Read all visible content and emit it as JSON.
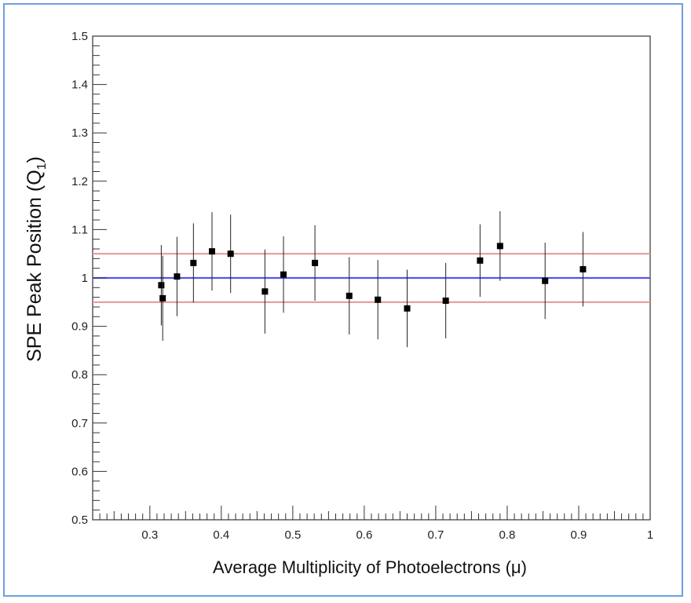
{
  "chart_data": {
    "type": "scatter",
    "xlabel": "Average Multiplicity of Photoelectrons (μ)",
    "ylabel_main": "SPE Peak Position (Q",
    "ylabel_sub": "1",
    "ylabel_close": ")",
    "xlim": [
      0.22,
      1.0
    ],
    "ylim": [
      0.5,
      1.5
    ],
    "x_tick_labels": [
      "0.3",
      "0.4",
      "0.5",
      "0.6",
      "0.7",
      "0.8",
      "0.9",
      "1"
    ],
    "y_tick_labels": [
      "0.5",
      "0.6",
      "0.7",
      "0.8",
      "0.9",
      "1",
      "1.1",
      "1.2",
      "1.3",
      "1.4",
      "1.5"
    ],
    "reference_lines": [
      {
        "y": 1.0,
        "color": "#5555ee"
      },
      {
        "y": 1.05,
        "color": "#e69a9a"
      },
      {
        "y": 0.95,
        "color": "#e69a9a"
      }
    ],
    "points": [
      {
        "x": 0.316,
        "y": 0.985,
        "err": 0.083
      },
      {
        "x": 0.318,
        "y": 0.958,
        "err": 0.088
      },
      {
        "x": 0.338,
        "y": 1.003,
        "err": 0.082
      },
      {
        "x": 0.361,
        "y": 1.031,
        "err": 0.082
      },
      {
        "x": 0.387,
        "y": 1.055,
        "err": 0.081
      },
      {
        "x": 0.413,
        "y": 1.05,
        "err": 0.081
      },
      {
        "x": 0.461,
        "y": 0.972,
        "err": 0.087
      },
      {
        "x": 0.487,
        "y": 1.007,
        "err": 0.079
      },
      {
        "x": 0.531,
        "y": 1.031,
        "err": 0.078
      },
      {
        "x": 0.579,
        "y": 0.963,
        "err": 0.08
      },
      {
        "x": 0.619,
        "y": 0.955,
        "err": 0.082
      },
      {
        "x": 0.66,
        "y": 0.937,
        "err": 0.08
      },
      {
        "x": 0.714,
        "y": 0.953,
        "err": 0.078
      },
      {
        "x": 0.762,
        "y": 1.036,
        "err": 0.075
      },
      {
        "x": 0.79,
        "y": 1.066,
        "err": 0.072
      },
      {
        "x": 0.853,
        "y": 0.994,
        "err": 0.079
      },
      {
        "x": 0.906,
        "y": 1.018,
        "err": 0.077
      }
    ],
    "grid": false,
    "colors": {
      "points": "#000000",
      "mean_line": "#5555ee",
      "band_lines": "#e69a9a",
      "frame": "#6f9fe6"
    }
  }
}
